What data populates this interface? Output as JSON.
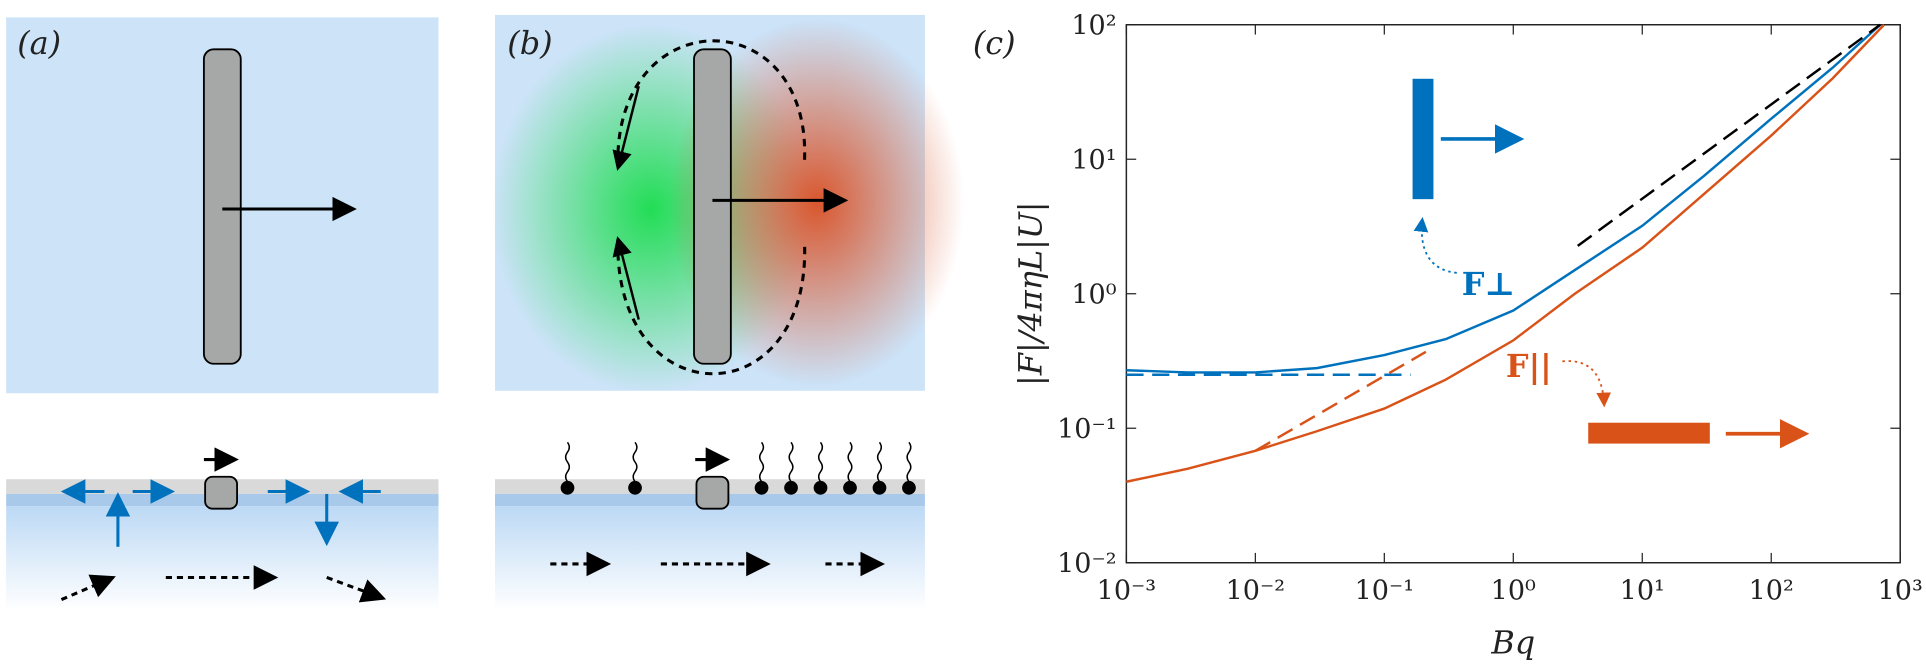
{
  "panels": {
    "a": {
      "label": "(a)"
    },
    "b": {
      "label": "(b)"
    }
  },
  "chart_data": {
    "type": "line",
    "panel_label": "(c)",
    "xlabel": "Bq",
    "ylabel": "|F|/4πηL|U|",
    "xscale": "log",
    "yscale": "log",
    "xlim": [
      0.001,
      1000
    ],
    "ylim": [
      0.01,
      100
    ],
    "xticks": [
      {
        "value": 0.001,
        "label": "10⁻³"
      },
      {
        "value": 0.01,
        "label": "10⁻²"
      },
      {
        "value": 0.1,
        "label": "10⁻¹"
      },
      {
        "value": 1,
        "label": "10⁰"
      },
      {
        "value": 10,
        "label": "10¹"
      },
      {
        "value": 100,
        "label": "10²"
      },
      {
        "value": 1000,
        "label": "10³"
      }
    ],
    "yticks": [
      {
        "value": 0.01,
        "label": "10⁻²"
      },
      {
        "value": 0.1,
        "label": "10⁻¹"
      },
      {
        "value": 1,
        "label": "10⁰"
      },
      {
        "value": 10,
        "label": "10¹"
      },
      {
        "value": 100,
        "label": "10²"
      }
    ],
    "annotations": [
      "F⊥",
      "F||"
    ],
    "series": [
      {
        "name": "F⊥",
        "color": "#0072bd",
        "style": "solid",
        "x": [
          0.001,
          0.003,
          0.01,
          0.03,
          0.1,
          0.3,
          1,
          3,
          10,
          30,
          100,
          300,
          700
        ],
        "values": [
          0.27,
          0.26,
          0.26,
          0.28,
          0.35,
          0.46,
          0.75,
          1.5,
          3.2,
          7.5,
          20,
          48,
          100
        ]
      },
      {
        "name": "F||",
        "color": "#d95319",
        "style": "solid",
        "x": [
          0.001,
          0.003,
          0.01,
          0.03,
          0.1,
          0.3,
          1,
          3,
          10,
          30,
          100,
          300,
          750
        ],
        "values": [
          0.04,
          0.05,
          0.068,
          0.095,
          0.14,
          0.23,
          0.45,
          1.0,
          2.2,
          5.5,
          15,
          40,
          100
        ]
      },
      {
        "color": "#0072bd",
        "style": "dashed",
        "x": [
          0.001,
          0.16
        ],
        "values": [
          0.25,
          0.25
        ]
      },
      {
        "color": "#d95319",
        "style": "dashed",
        "x": [
          0.01,
          0.21
        ],
        "values": [
          0.068,
          0.37
        ]
      },
      {
        "color": "#000000",
        "style": "dashed",
        "x": [
          3.16,
          700
        ],
        "values": [
          2.27,
          100
        ]
      }
    ]
  }
}
